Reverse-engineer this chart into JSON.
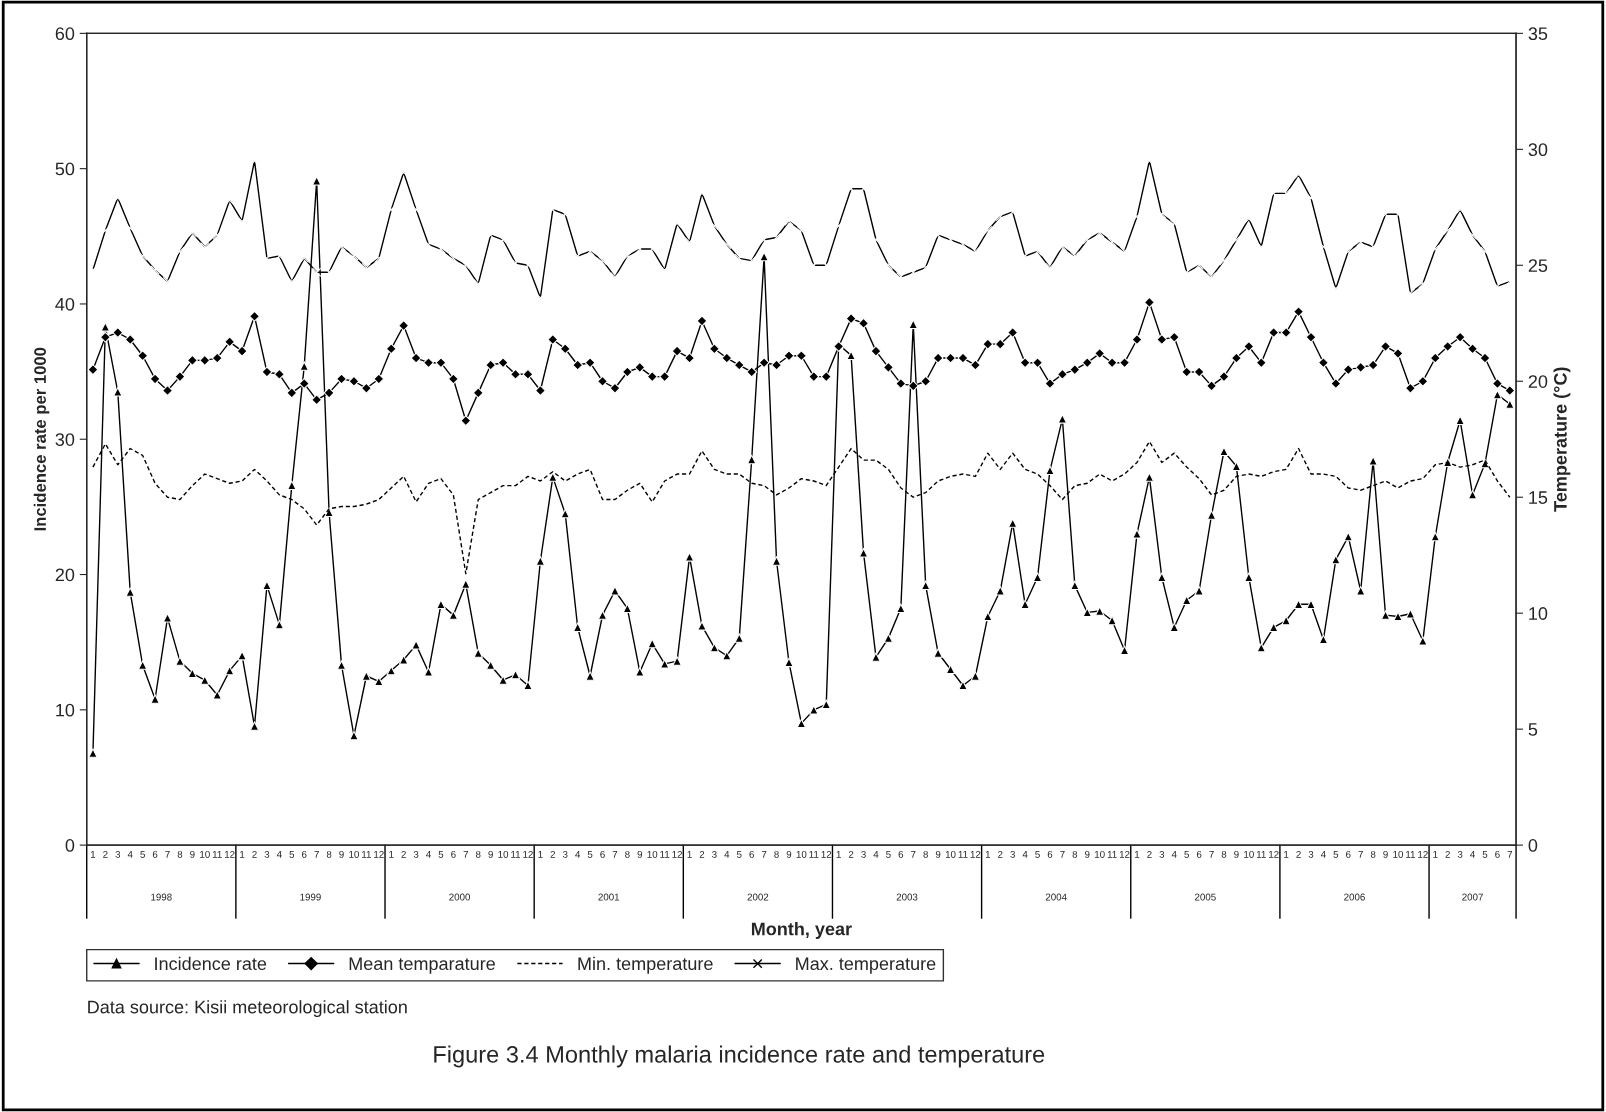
{
  "chart_data": {
    "type": "line",
    "title": "Figure 3.4 Monthly malaria incidence rate and temperature",
    "xlabel": "Month, year",
    "ylabel": "Incidence rate per 1000",
    "y2label": "Temperature (°C)",
    "categories": [
      "1",
      "2",
      "3",
      "4",
      "5",
      "6",
      "7",
      "8",
      "9",
      "10",
      "11",
      "12",
      "1",
      "2",
      "3",
      "4",
      "5",
      "6",
      "7",
      "8",
      "9",
      "10",
      "11",
      "12",
      "1",
      "2",
      "3",
      "4",
      "5",
      "6",
      "7",
      "8",
      "9",
      "10",
      "11",
      "12",
      "1",
      "2",
      "3",
      "4",
      "5",
      "6",
      "7",
      "8",
      "9",
      "10",
      "11",
      "12",
      "1",
      "2",
      "3",
      "4",
      "5",
      "6",
      "7",
      "8",
      "9",
      "10",
      "11",
      "12",
      "1",
      "2",
      "3",
      "4",
      "5",
      "6",
      "7",
      "8",
      "9",
      "10",
      "11",
      "12",
      "1",
      "2",
      "3",
      "4",
      "5",
      "6",
      "7",
      "8",
      "9",
      "10",
      "11",
      "12",
      "1",
      "2",
      "3",
      "4",
      "5",
      "6",
      "7",
      "8",
      "9",
      "10",
      "11",
      "12",
      "1",
      "2",
      "3",
      "4",
      "5",
      "6",
      "7",
      "8",
      "9",
      "10",
      "11",
      "12",
      "1",
      "2",
      "3",
      "4",
      "5",
      "6",
      "7"
    ],
    "series": [
      {
        "name": "Incidence rate",
        "color": "#000000",
        "marker": "triangle",
        "line_style": "solid",
        "values": [
          6.8,
          38.3,
          33.5,
          18.7,
          13.3,
          10.8,
          16.8,
          13.6,
          12.7,
          12.2,
          11.1,
          12.9,
          14.0,
          8.8,
          19.2,
          16.3,
          26.6,
          35.4,
          49.1,
          24.6,
          13.3,
          8.1,
          12.5,
          12.1,
          12.9,
          13.7,
          14.8,
          12.8,
          17.8,
          17.0,
          19.3,
          14.2,
          13.3,
          12.2,
          12.6,
          11.8,
          21.0,
          27.2,
          24.5,
          16.1,
          12.5,
          17.0,
          18.8,
          17.5,
          12.8,
          14.9,
          13.4,
          13.6,
          21.3,
          16.2,
          14.6,
          14.0,
          15.3,
          28.5,
          43.5,
          21.0,
          13.5,
          9.0,
          10.0,
          10.4,
          37.0,
          36.2,
          21.6,
          13.9,
          15.3,
          17.5,
          38.5,
          19.2,
          14.2,
          13.0,
          11.8,
          12.5,
          16.9,
          18.8,
          23.8,
          17.8,
          19.8,
          27.7,
          31.5,
          19.2,
          17.2,
          17.3,
          16.6,
          14.4,
          23.0,
          27.2,
          19.8,
          16.1,
          18.1,
          18.8,
          24.4,
          29.1,
          28.0,
          19.8,
          14.6,
          16.1,
          16.6,
          17.8,
          17.8,
          15.2,
          21.1,
          22.8,
          18.8,
          28.4,
          17.0,
          16.9,
          17.1,
          15.1,
          22.8,
          28.3,
          31.4,
          25.9,
          28.2,
          33.3,
          32.6
        ]
      },
      {
        "name": "Mean temparature",
        "color": "#000000",
        "marker": "diamond",
        "line_style": "solid",
        "axis": "y2",
        "values": [
          20.5,
          21.9,
          22.1,
          21.8,
          21.1,
          20.1,
          19.6,
          20.2,
          20.9,
          20.9,
          21.0,
          21.7,
          21.3,
          22.8,
          20.4,
          20.3,
          19.5,
          19.9,
          19.2,
          19.5,
          20.1,
          20.0,
          19.7,
          20.1,
          21.4,
          22.4,
          21.0,
          20.8,
          20.8,
          20.1,
          18.3,
          19.5,
          20.7,
          20.8,
          20.3,
          20.3,
          19.6,
          21.8,
          21.4,
          20.7,
          20.8,
          20.0,
          19.7,
          20.4,
          20.6,
          20.2,
          20.2,
          21.3,
          21.0,
          22.6,
          21.4,
          21.0,
          20.7,
          20.4,
          20.8,
          20.7,
          21.1,
          21.1,
          20.2,
          20.2,
          21.5,
          22.7,
          22.5,
          21.3,
          20.6,
          19.9,
          19.8,
          20.0,
          21.0,
          21.0,
          21.0,
          20.7,
          21.6,
          21.6,
          22.1,
          20.8,
          20.8,
          19.9,
          20.3,
          20.5,
          20.8,
          21.2,
          20.8,
          20.8,
          21.8,
          23.4,
          21.8,
          21.9,
          20.4,
          20.4,
          19.8,
          20.2,
          21.0,
          21.5,
          20.8,
          22.1,
          22.1,
          23.0,
          21.9,
          20.8,
          19.9,
          20.5,
          20.6,
          20.7,
          21.5,
          21.2,
          19.7,
          20.0,
          21.0,
          21.5,
          21.9,
          21.4,
          21.0,
          19.9,
          19.6
        ]
      },
      {
        "name": "Min. temperature",
        "color": "#000000",
        "marker": "none",
        "line_style": "dashed",
        "axis": "y2",
        "values": [
          16.3,
          17.3,
          16.4,
          17.1,
          16.8,
          15.6,
          15.0,
          14.9,
          15.5,
          16.0,
          15.8,
          15.6,
          15.7,
          16.2,
          15.7,
          15.1,
          14.9,
          14.5,
          13.8,
          14.5,
          14.6,
          14.6,
          14.7,
          14.9,
          15.4,
          15.9,
          14.8,
          15.6,
          15.8,
          15.1,
          11.7,
          14.9,
          15.2,
          15.5,
          15.5,
          15.9,
          15.7,
          16.1,
          15.7,
          16.0,
          16.2,
          14.9,
          14.9,
          15.3,
          15.6,
          14.8,
          15.7,
          16.0,
          16.0,
          17.0,
          16.2,
          16.0,
          16.0,
          15.6,
          15.5,
          15.1,
          15.4,
          15.8,
          15.7,
          15.5,
          16.3,
          17.1,
          16.6,
          16.6,
          16.2,
          15.4,
          15.0,
          15.2,
          15.7,
          15.9,
          16.0,
          15.9,
          16.9,
          16.2,
          16.9,
          16.2,
          16.0,
          15.5,
          14.9,
          15.5,
          15.6,
          16.0,
          15.7,
          16.0,
          16.5,
          17.4,
          16.5,
          16.9,
          16.3,
          15.8,
          15.1,
          15.3,
          15.9,
          16.0,
          15.9,
          16.1,
          16.2,
          17.1,
          16.0,
          16.0,
          15.9,
          15.4,
          15.3,
          15.5,
          15.7,
          15.4,
          15.7,
          15.8,
          16.4,
          16.5,
          16.3,
          16.4,
          16.6,
          15.7,
          15.0
        ]
      },
      {
        "name": "Max. temperature",
        "color": "#000000",
        "marker": "cross",
        "line_style": "solid",
        "axis": "y2",
        "values": [
          24.8,
          26.5,
          27.9,
          26.6,
          25.4,
          24.8,
          24.3,
          25.6,
          26.4,
          25.8,
          26.3,
          27.8,
          26.9,
          29.5,
          25.3,
          25.4,
          24.3,
          25.3,
          24.7,
          24.7,
          25.8,
          25.4,
          24.9,
          25.3,
          27.4,
          29.0,
          27.4,
          25.9,
          25.7,
          25.3,
          25.0,
          24.2,
          26.3,
          26.1,
          25.1,
          25.0,
          23.6,
          27.4,
          27.2,
          25.4,
          25.6,
          25.2,
          24.5,
          25.4,
          25.7,
          25.7,
          24.8,
          26.8,
          26.0,
          28.1,
          26.7,
          25.9,
          25.3,
          25.2,
          26.1,
          26.2,
          26.9,
          26.5,
          25.0,
          25.0,
          26.7,
          28.3,
          28.3,
          26.1,
          25.0,
          24.5,
          24.7,
          24.9,
          26.3,
          26.1,
          25.9,
          25.6,
          26.5,
          27.1,
          27.3,
          25.4,
          25.6,
          24.9,
          25.8,
          25.4,
          26.1,
          26.4,
          26.0,
          25.6,
          27.1,
          29.5,
          27.2,
          26.8,
          24.7,
          25.0,
          24.5,
          25.2,
          26.1,
          27.0,
          25.8,
          28.1,
          28.1,
          28.9,
          27.9,
          25.8,
          24.0,
          25.6,
          26.0,
          25.8,
          27.2,
          27.2,
          23.8,
          24.2,
          25.7,
          26.5,
          27.4,
          26.3,
          25.6,
          24.1,
          24.3
        ]
      }
    ],
    "ylim": [
      0,
      60
    ],
    "yticks": [
      0,
      10,
      20,
      30,
      40,
      50,
      60
    ],
    "y2lim": [
      0,
      35
    ],
    "y2ticks": [
      0,
      5,
      10,
      15,
      20,
      25,
      30,
      35
    ],
    "legend": "bottom",
    "grid": false,
    "annotations": [
      "1998",
      "1999",
      "2000",
      "2001",
      "2002",
      "2003",
      "2004",
      "2005",
      "2006",
      "2007",
      "Data source: Kisii meteorological station"
    ]
  }
}
